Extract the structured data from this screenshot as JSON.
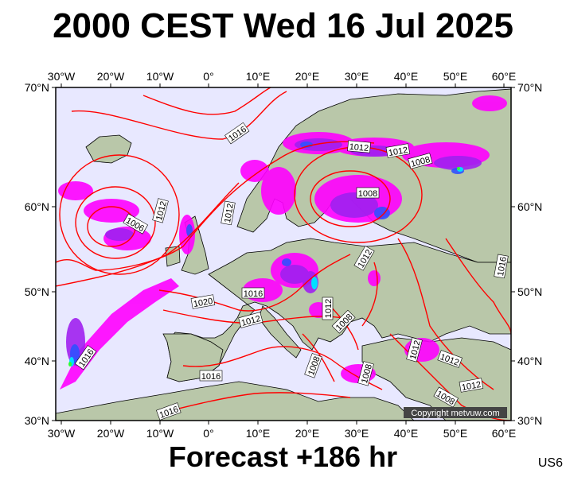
{
  "title": "2000 CEST Wed 16 Jul 2025",
  "footer": "Forecast +186 hr",
  "code": "US6",
  "copyright": "Copyright metvuw.com",
  "lon_labels": [
    "30°W",
    "20°W",
    "10°W",
    "0°",
    "10°E",
    "20°E",
    "30°E",
    "40°E",
    "50°E",
    "60°E"
  ],
  "lat_labels": [
    "70°N",
    "60°N",
    "50°N",
    "40°N",
    "30°N"
  ],
  "isobar_labels": [
    {
      "text": "1016"
    },
    {
      "text": "1012"
    },
    {
      "text": "1012"
    },
    {
      "text": "1008"
    },
    {
      "text": "1008"
    },
    {
      "text": "1012"
    },
    {
      "text": "1006"
    },
    {
      "text": "1012"
    },
    {
      "text": "1016"
    },
    {
      "text": "1020"
    },
    {
      "text": "1012"
    },
    {
      "text": "1012"
    },
    {
      "text": "1008"
    },
    {
      "text": "1016"
    },
    {
      "text": "1008"
    },
    {
      "text": "1012"
    },
    {
      "text": "1012"
    },
    {
      "text": "1008"
    },
    {
      "text": "1012"
    },
    {
      "text": "1016"
    },
    {
      "text": "1016"
    },
    {
      "text": "1008"
    },
    {
      "text": "1016"
    },
    {
      "text": "1012"
    }
  ],
  "colors": {
    "ocean": "#e8e8ff",
    "land": "#b9c7a9",
    "isobar": "#ff0000",
    "precip_magenta": "#ff00ff",
    "precip_purple": "#a020f0",
    "precip_blue": "#3050ff",
    "precip_cyan": "#00e0ff",
    "precip_green": "#30ff30",
    "precip_yellow": "#ffff00"
  }
}
